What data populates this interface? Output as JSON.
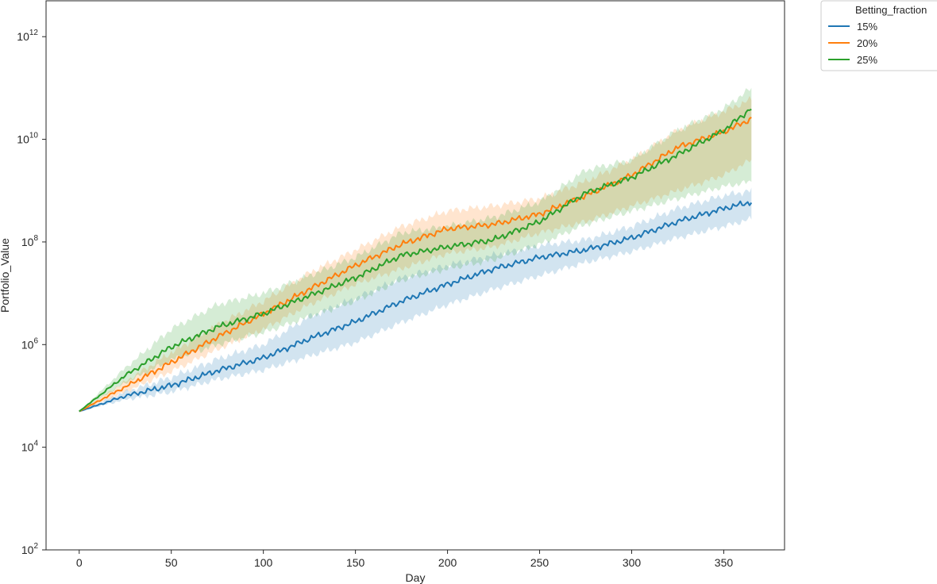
{
  "chart_data": {
    "type": "line",
    "title": "",
    "xlabel": "Day",
    "ylabel": "Portfolio_Value",
    "xlim": [
      -18,
      383
    ],
    "ylim": [
      100,
      5000000000000
    ],
    "yscale": "log",
    "grid": false,
    "x_ticks": [
      0,
      50,
      100,
      150,
      200,
      250,
      300,
      350
    ],
    "x_tick_labels": [
      "0",
      "50",
      "100",
      "150",
      "200",
      "250",
      "300",
      "350"
    ],
    "y_ticks": [
      {
        "value": 100,
        "base": "10",
        "exp": "2"
      },
      {
        "value": 10000,
        "base": "10",
        "exp": "4"
      },
      {
        "value": 1000000,
        "base": "10",
        "exp": "6"
      },
      {
        "value": 100000000,
        "base": "10",
        "exp": "8"
      },
      {
        "value": 10000000000,
        "base": "10",
        "exp": "10"
      },
      {
        "value": 1000000000000,
        "base": "10",
        "exp": "12"
      }
    ],
    "legend": {
      "title": "Betting_fraction",
      "position": "outside-top-right"
    },
    "series": [
      {
        "name": "15%",
        "color": "#1f77b4",
        "x": [
          0,
          25,
          50,
          75,
          100,
          125,
          150,
          175,
          200,
          225,
          250,
          275,
          300,
          325,
          350,
          365
        ],
        "y": [
          50000,
          100000,
          160000,
          310000,
          550000,
          1300000,
          2800000,
          7000000,
          15000000,
          30000000,
          50000000,
          70000000,
          120000000,
          250000000,
          450000000,
          600000000
        ],
        "lower": [
          50000,
          85000,
          120000,
          210000,
          320000,
          600000,
          1100000,
          2700000,
          6000000,
          12000000,
          22000000,
          40000000,
          65000000,
          120000000,
          200000000,
          280000000
        ],
        "upper": [
          50000,
          120000,
          230000,
          520000,
          1000000,
          3500000,
          8000000,
          20000000,
          35000000,
          55000000,
          85000000,
          110000000,
          200000000,
          450000000,
          800000000,
          1000000000
        ]
      },
      {
        "name": "20%",
        "color": "#ff7f0e",
        "x": [
          0,
          25,
          50,
          75,
          100,
          125,
          150,
          175,
          200,
          225,
          250,
          275,
          300,
          325,
          350,
          365
        ],
        "y": [
          50000,
          150000,
          450000,
          1400000,
          4000000,
          12000000,
          35000000,
          90000000,
          180000000,
          220000000,
          350000000,
          800000000,
          2000000000,
          7000000000,
          14000000000,
          25000000000
        ],
        "lower": [
          50000,
          120000,
          300000,
          800000,
          2000000,
          6000000,
          15000000,
          30000000,
          60000000,
          80000000,
          150000000,
          250000000,
          500000000,
          1000000000,
          2000000000,
          4000000000
        ],
        "upper": [
          50000,
          190000,
          700000,
          2400000,
          7000000,
          25000000,
          70000000,
          200000000,
          400000000,
          500000000,
          700000000,
          1500000000,
          4000000000,
          15000000000,
          35000000000,
          60000000000
        ]
      },
      {
        "name": "25%",
        "color": "#2ca02c",
        "x": [
          0,
          25,
          50,
          75,
          100,
          125,
          150,
          175,
          200,
          225,
          250,
          275,
          300,
          325,
          350,
          365
        ],
        "y": [
          50000,
          250000,
          900000,
          2200000,
          4000000,
          9000000,
          20000000,
          55000000,
          80000000,
          110000000,
          250000000,
          900000000,
          1800000000,
          5000000000,
          15000000000,
          40000000000
        ],
        "lower": [
          50000,
          180000,
          500000,
          1000000,
          1700000,
          3500000,
          7000000,
          18000000,
          30000000,
          45000000,
          90000000,
          220000000,
          400000000,
          700000000,
          1200000000,
          1500000000
        ],
        "upper": [
          50000,
          350000,
          2000000,
          6000000,
          10000000,
          22000000,
          50000000,
          150000000,
          200000000,
          300000000,
          600000000,
          2500000000,
          4000000000,
          15000000000,
          40000000000,
          100000000000
        ]
      }
    ]
  }
}
